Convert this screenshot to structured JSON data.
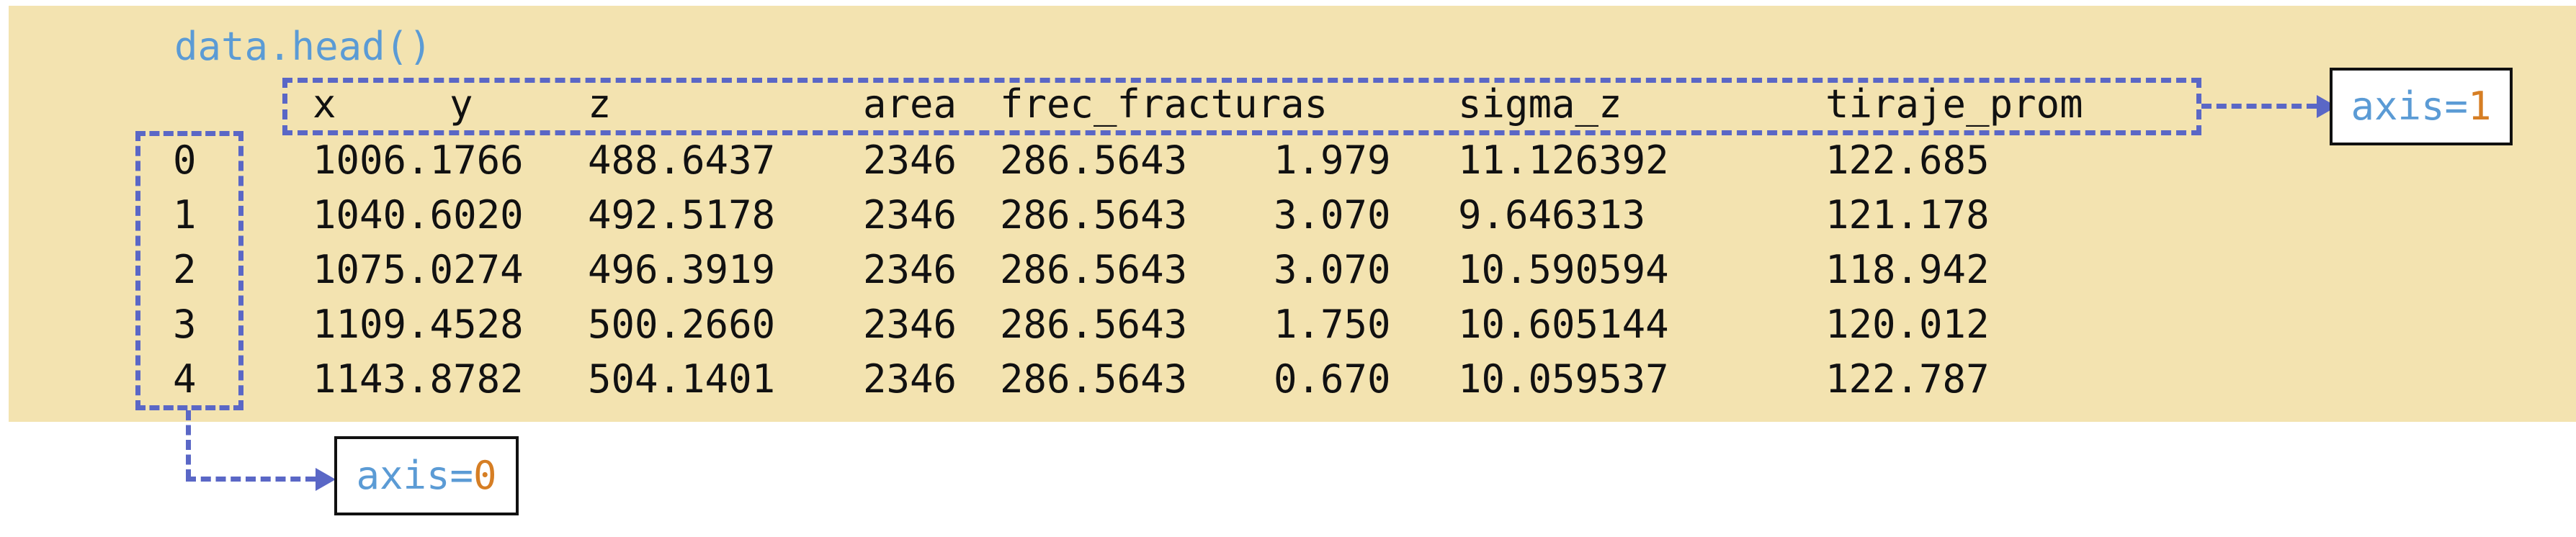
{
  "code": "data.head()",
  "table": {
    "header": {
      "x": "x",
      "y": "y",
      "z": "z",
      "area": "area",
      "frec_fracturas": "frec_fracturas",
      "sigma_z": "sigma_z",
      "tiraje_prom": "tiraje_prom"
    },
    "rows": [
      {
        "index": "0",
        "x": "1006.1766",
        "z": "488.6437",
        "area": "2346",
        "frec_fracturas": "286.5643",
        "sigma_value": "1.979",
        "sigma_z": "11.126392",
        "tiraje_prom": "122.685"
      },
      {
        "index": "1",
        "x": "1040.6020",
        "z": "492.5178",
        "area": "2346",
        "frec_fracturas": "286.5643",
        "sigma_value": "3.070",
        "sigma_z": "9.646313",
        "tiraje_prom": "121.178"
      },
      {
        "index": "2",
        "x": "1075.0274",
        "z": "496.3919",
        "area": "2346",
        "frec_fracturas": "286.5643",
        "sigma_value": "3.070",
        "sigma_z": "10.590594",
        "tiraje_prom": "118.942"
      },
      {
        "index": "3",
        "x": "1109.4528",
        "z": "500.2660",
        "area": "2346",
        "frec_fracturas": "286.5643",
        "sigma_value": "1.750",
        "sigma_z": "10.605144",
        "tiraje_prom": "120.012"
      },
      {
        "index": "4",
        "x": "1143.8782",
        "z": "504.1401",
        "area": "2346",
        "frec_fracturas": "286.5643",
        "sigma_value": "0.670",
        "sigma_z": "10.059537",
        "tiraje_prom": "122.787"
      }
    ]
  },
  "annotations": {
    "axis1": {
      "label": "axis=",
      "value": "1"
    },
    "axis0": {
      "label": "axis=",
      "value": "0"
    }
  },
  "colors": {
    "banner_background": "#f3e3b0",
    "dashed_outline": "#5a67c6",
    "code_text": "#5b9bd5",
    "axis_value": "#d67e24",
    "body_text": "#111111"
  },
  "icons": {
    "arrow_right": "arrow-right-icon"
  }
}
